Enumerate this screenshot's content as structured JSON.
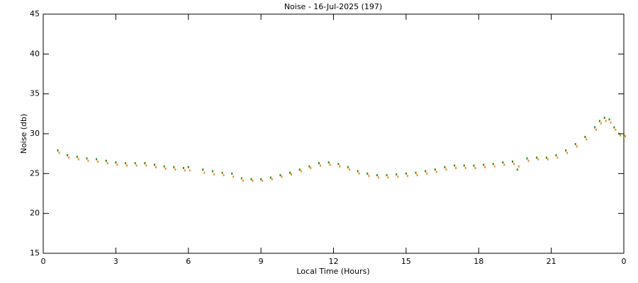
{
  "chart_data": {
    "type": "scatter",
    "title": "Noise - 16-Jul-2025 (197)",
    "xlabel": "Local Time (Hours)",
    "ylabel": "Noise (db)",
    "xlim": [
      0,
      24
    ],
    "xticks": [
      0,
      3,
      6,
      9,
      12,
      15,
      18,
      21,
      {
        "value": 24,
        "label": "0"
      }
    ],
    "ylim": [
      15,
      45
    ],
    "yticks": [
      15,
      20,
      25,
      30,
      35,
      40,
      45
    ],
    "x": [
      0.6,
      1.0,
      1.4,
      1.8,
      2.2,
      2.6,
      3.0,
      3.4,
      3.8,
      4.2,
      4.6,
      5.0,
      5.4,
      5.8,
      6.0,
      6.6,
      7.0,
      7.4,
      7.8,
      8.2,
      8.6,
      9.0,
      9.4,
      9.8,
      10.2,
      10.6,
      11.0,
      11.4,
      11.8,
      12.2,
      12.6,
      13.0,
      13.4,
      13.8,
      14.2,
      14.6,
      15.0,
      15.4,
      15.8,
      16.2,
      16.6,
      17.0,
      17.4,
      17.8,
      18.2,
      18.6,
      19.0,
      19.4,
      19.6,
      20.0,
      20.4,
      20.8,
      21.2,
      21.6,
      22.0,
      22.4,
      22.8,
      23.0,
      23.2,
      23.4,
      23.6,
      23.8,
      24.0
    ],
    "series": [
      {
        "color": "#228b22",
        "values": [
          27.9,
          27.3,
          27.1,
          26.9,
          26.8,
          26.6,
          26.4,
          26.3,
          26.3,
          26.3,
          26.1,
          25.9,
          25.8,
          25.7,
          25.8,
          25.5,
          25.3,
          25.1,
          25.0,
          24.4,
          24.3,
          24.3,
          24.5,
          24.8,
          25.1,
          25.5,
          25.9,
          26.3,
          26.4,
          26.2,
          25.8,
          25.3,
          25.0,
          24.8,
          24.8,
          24.9,
          25.0,
          25.1,
          25.3,
          25.5,
          25.8,
          26.0,
          26.0,
          26.0,
          26.1,
          26.2,
          26.4,
          26.5,
          25.5,
          26.9,
          27.0,
          27.0,
          27.3,
          27.9,
          28.7,
          29.6,
          30.8,
          31.6,
          32.0,
          31.8,
          30.8,
          30.0,
          29.9
        ]
      },
      {
        "color": "#ff8c00",
        "values": [
          27.6,
          27.0,
          26.8,
          26.6,
          26.5,
          26.3,
          26.1,
          26.0,
          26.0,
          26.0,
          25.8,
          25.6,
          25.5,
          25.4,
          25.4,
          25.1,
          24.9,
          24.8,
          24.6,
          24.1,
          24.1,
          24.1,
          24.3,
          24.6,
          24.9,
          25.3,
          25.7,
          26.0,
          26.1,
          25.9,
          25.5,
          25.0,
          24.7,
          24.5,
          24.5,
          24.6,
          24.7,
          24.8,
          25.0,
          25.2,
          25.5,
          25.7,
          25.7,
          25.7,
          25.8,
          25.9,
          26.1,
          26.2,
          25.9,
          26.6,
          26.8,
          26.8,
          27.0,
          27.6,
          28.4,
          29.3,
          30.5,
          31.3,
          31.6,
          31.4,
          30.5,
          29.8,
          29.7
        ]
      }
    ]
  }
}
